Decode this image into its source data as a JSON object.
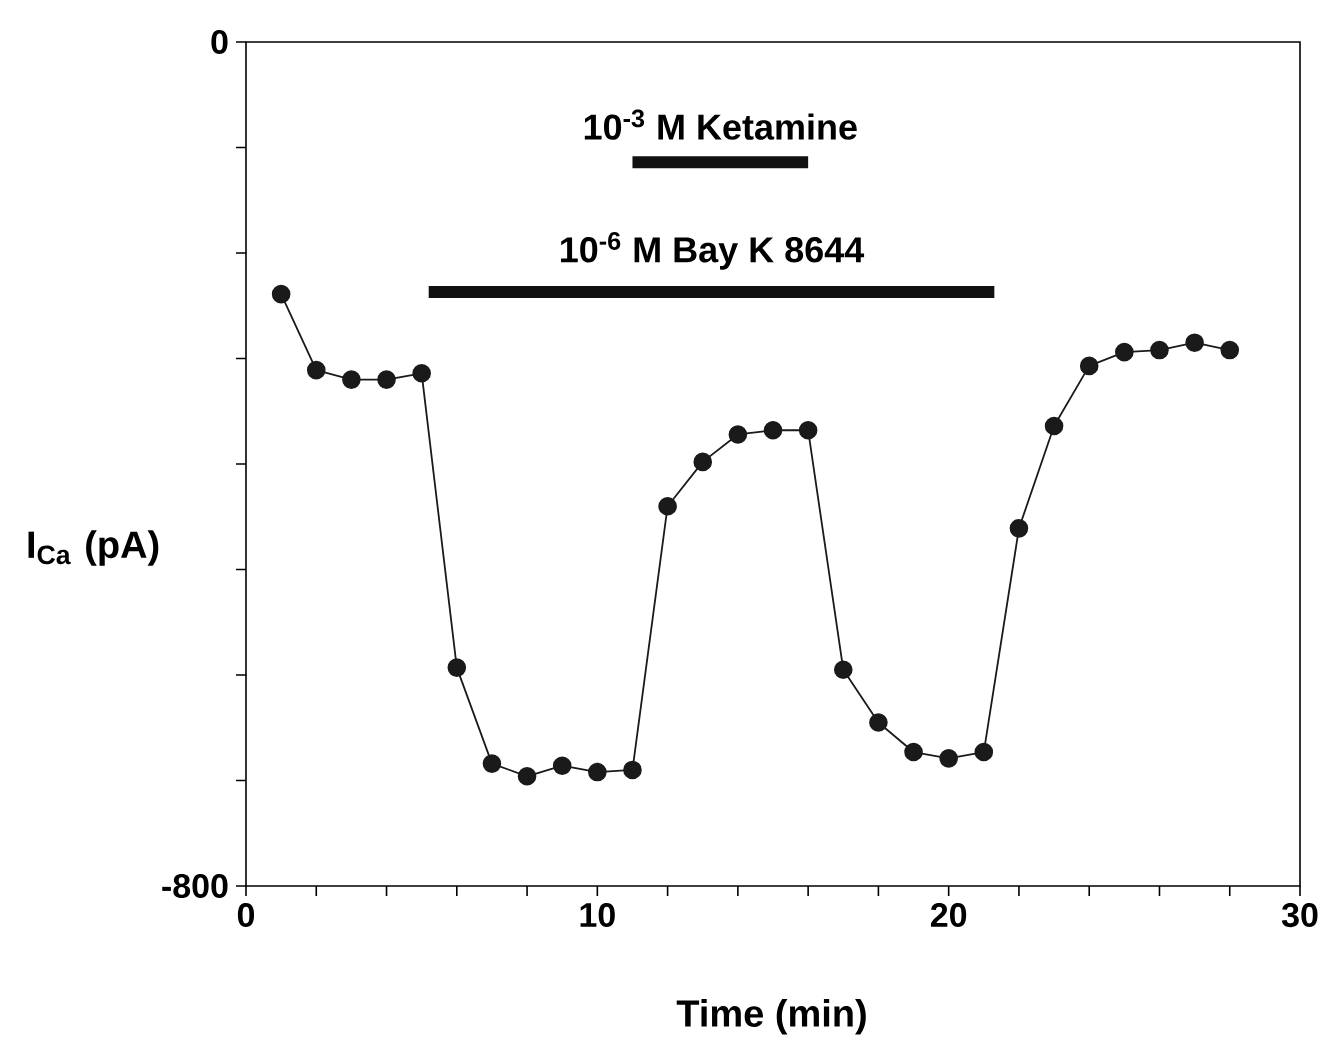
{
  "chart_data": {
    "type": "line",
    "xlabel": "Time (min)",
    "ylabel": "I$_{Ca}$ (pA)",
    "x": [
      1,
      2,
      3,
      4,
      5,
      6,
      7,
      8,
      9,
      10,
      11,
      12,
      13,
      14,
      15,
      16,
      17,
      18,
      19,
      20,
      21,
      22,
      23,
      24,
      25,
      26,
      27,
      28
    ],
    "series": [
      {
        "color": "#1a1a1a",
        "marker": "circle",
        "values": [
          -239,
          -311,
          -320,
          -320,
          -314,
          -593,
          -684,
          -696,
          -686,
          -692,
          -690,
          -440,
          -398,
          -372,
          -368,
          -368,
          -595,
          -645,
          -673,
          -679,
          -673,
          -461,
          -364,
          -307,
          -294,
          -292,
          -285,
          -292
        ]
      },
      {
        "name": "10$^{-3}$ M Ketamine",
        "color": "#111111",
        "marker": "none",
        "x": [
          11,
          16
        ],
        "values": [
          -114,
          -114
        ]
      },
      {
        "name": "10$^{-6}$ M Bay K 8644",
        "color": "#111111",
        "marker": "none",
        "x": [
          5.2,
          21.3
        ],
        "values": [
          -237,
          -237
        ]
      }
    ],
    "line_style": "solid",
    "xlim": [
      0,
      30
    ],
    "xticks": [
      0,
      {
        "value": 2,
        "label": null
      },
      {
        "value": 4,
        "label": null
      },
      {
        "value": 6,
        "label": null
      },
      {
        "value": 8,
        "label": null
      },
      10,
      {
        "value": 12,
        "label": null
      },
      {
        "value": 14,
        "label": null
      },
      {
        "value": 16,
        "label": null
      },
      {
        "value": 18,
        "label": null
      },
      20,
      {
        "value": 22,
        "label": null
      },
      {
        "value": 24,
        "label": null
      },
      {
        "value": 26,
        "label": null
      },
      {
        "value": 28,
        "label": null
      },
      30
    ],
    "ylim": [
      -800,
      0
    ],
    "yticks": [
      -800,
      {
        "value": -700,
        "label": null
      },
      {
        "value": -600,
        "label": null
      },
      {
        "value": -500,
        "label": null
      },
      {
        "value": -400,
        "label": null
      },
      {
        "value": -300,
        "label": null
      },
      {
        "value": -200,
        "label": null
      },
      {
        "value": -100,
        "label": null
      },
      0
    ]
  }
}
